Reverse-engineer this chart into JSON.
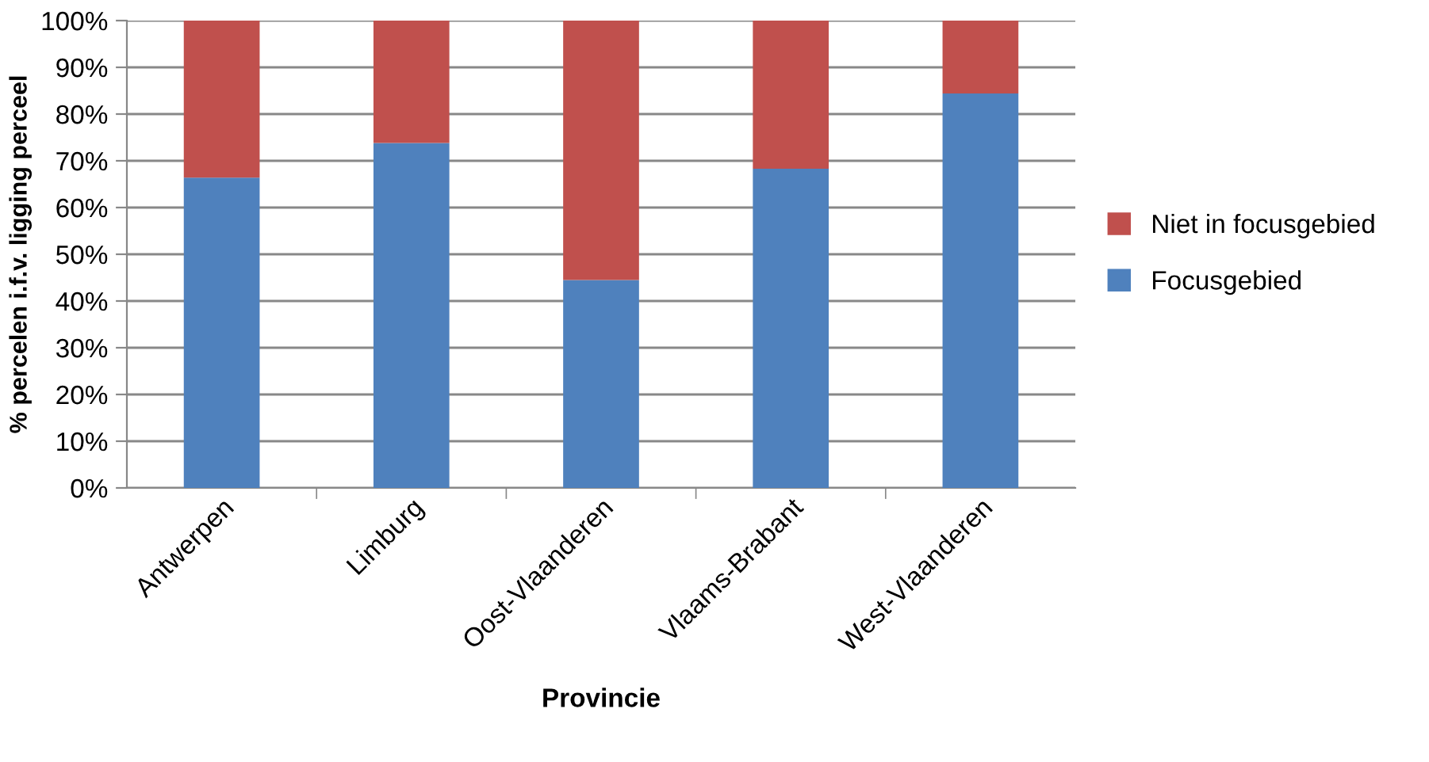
{
  "chart_data": {
    "type": "bar",
    "stacked": true,
    "xlabel": "Provincie",
    "ylabel": "% percelen i.f.v. ligging perceel",
    "categories": [
      "Antwerpen",
      "Limburg",
      "Oost-Vlaanderen",
      "Vlaams-Brabant",
      "West-Vlaanderen"
    ],
    "series": [
      {
        "name": "Focusgebied",
        "color": "#4f81bd",
        "values": [
          66.4,
          73.8,
          44.5,
          68.3,
          84.4
        ]
      },
      {
        "name": "Niet in focusgebied",
        "color": "#c0504d",
        "values": [
          33.6,
          26.2,
          55.5,
          31.7,
          15.6
        ]
      }
    ],
    "ylim": [
      0,
      100
    ],
    "yticks": [
      {
        "value": 0,
        "label": "0%"
      },
      {
        "value": 10,
        "label": "10%"
      },
      {
        "value": 20,
        "label": "20%"
      },
      {
        "value": 30,
        "label": "30%"
      },
      {
        "value": 40,
        "label": "40%"
      },
      {
        "value": 50,
        "label": "50%"
      },
      {
        "value": 60,
        "label": "60%"
      },
      {
        "value": 70,
        "label": "70%"
      },
      {
        "value": 80,
        "label": "80%"
      },
      {
        "value": 90,
        "label": "90%"
      },
      {
        "value": 100,
        "label": "100%"
      }
    ],
    "grid": "y",
    "legend": "right"
  }
}
